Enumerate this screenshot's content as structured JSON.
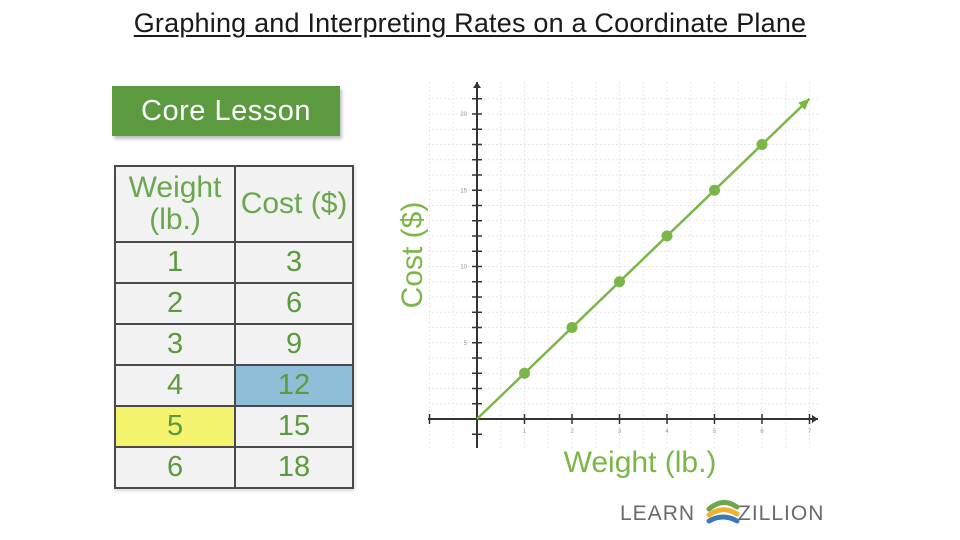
{
  "title": "Graphing and Interpreting Rates on a Coordinate Plane",
  "badge": {
    "label": "Core Lesson",
    "color": "#5c9a40"
  },
  "table": {
    "headers": [
      "Weight (lb.)",
      "Cost ($)"
    ],
    "rows": [
      [
        "1",
        "3"
      ],
      [
        "2",
        "6"
      ],
      [
        "3",
        "9"
      ],
      [
        "4",
        "12"
      ],
      [
        "5",
        "15"
      ],
      [
        "6",
        "18"
      ]
    ],
    "highlights": {
      "blue_cell": "Cost 12",
      "yellow_cell": "Weight 5"
    },
    "colors": {
      "text": "#5c9a40",
      "blue": "#8fbfd8",
      "yellow": "#f4f46e"
    }
  },
  "chart_data": {
    "type": "scatter",
    "xlabel": "Weight (lb.)",
    "ylabel": "Cost ($)",
    "x": [
      1,
      2,
      3,
      4,
      5,
      6
    ],
    "y": [
      3,
      6,
      9,
      12,
      15,
      18
    ],
    "trend_line": {
      "from": [
        0,
        0
      ],
      "to": [
        7,
        21
      ],
      "arrow": true
    },
    "xlim": [
      -1,
      7
    ],
    "ylim": [
      -1,
      21.5
    ],
    "x_ticks": [
      1,
      2,
      3,
      4,
      5,
      6,
      7
    ],
    "y_ticks": [
      5,
      10,
      15,
      20
    ],
    "grid": true,
    "color": "#7ab648"
  },
  "logo": {
    "left_text": "LEARN",
    "right_text": "ZILLION"
  }
}
